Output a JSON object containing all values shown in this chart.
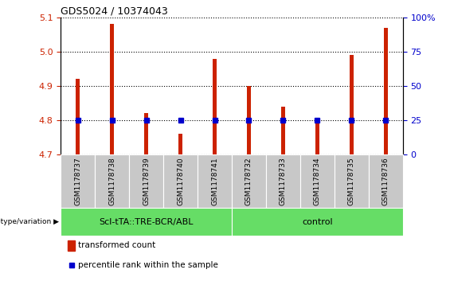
{
  "title": "GDS5024 / 10374043",
  "samples": [
    "GSM1178737",
    "GSM1178738",
    "GSM1178739",
    "GSM1178740",
    "GSM1178741",
    "GSM1178732",
    "GSM1178733",
    "GSM1178734",
    "GSM1178735",
    "GSM1178736"
  ],
  "transformed_counts": [
    4.92,
    5.08,
    4.82,
    4.76,
    4.98,
    4.9,
    4.84,
    4.8,
    4.99,
    5.07
  ],
  "group1_label": "Scl-tTA::TRE-BCR/ABL",
  "group1_count": 5,
  "group2_label": "control",
  "group2_count": 5,
  "ylim_left": [
    4.7,
    5.1
  ],
  "ylim_right": [
    0,
    100
  ],
  "yticks_left": [
    4.7,
    4.8,
    4.9,
    5.0,
    5.1
  ],
  "yticks_right": [
    0,
    25,
    50,
    75,
    100
  ],
  "bar_color": "#CC2200",
  "dot_color": "#0000CC",
  "group_bg_color": "#66DD66",
  "sample_bg_color": "#C8C8C8",
  "legend_bar_label": "transformed count",
  "legend_dot_label": "percentile rank within the sample",
  "bar_width": 0.12,
  "baseline": 4.7,
  "percentile_values": [
    25,
    25,
    25,
    25,
    25,
    25,
    25,
    25,
    25,
    25
  ],
  "title_fontsize": 9,
  "tick_fontsize": 8,
  "sample_fontsize": 6.5,
  "group_fontsize": 8,
  "legend_fontsize": 7.5
}
